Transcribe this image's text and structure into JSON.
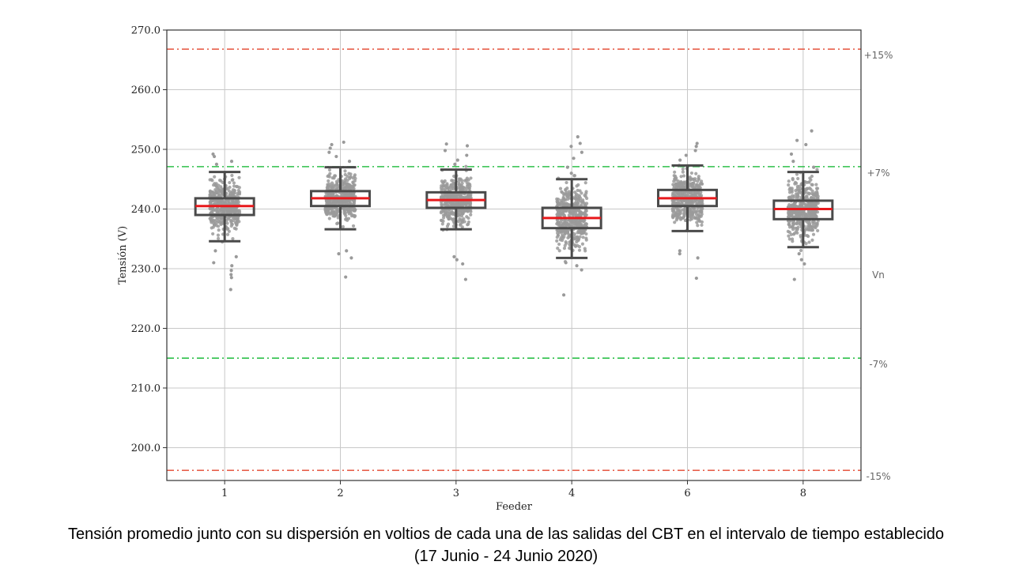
{
  "chart_data": {
    "type": "boxplot",
    "xlabel": "Feeder",
    "ylabel": "Tensión (V)",
    "ylim": [
      194.5,
      270.0
    ],
    "yticks": [
      200.0,
      210.0,
      220.0,
      230.0,
      240.0,
      250.0,
      260.0,
      270.0
    ],
    "grid": true,
    "categories": [
      "1",
      "2",
      "3",
      "4",
      "6",
      "8"
    ],
    "boxes": [
      {
        "name": "1",
        "whisker_low": 234.6,
        "q1": 239.0,
        "median": 240.5,
        "q3": 241.8,
        "whisker_high": 246.2,
        "outliers": [
          229.7,
          229.0,
          228.5,
          226.5,
          230.5,
          231.0,
          232.0,
          233.0,
          247.5,
          248.0,
          248.8,
          249.2
        ]
      },
      {
        "name": "2",
        "whisker_low": 236.6,
        "q1": 240.5,
        "median": 241.8,
        "q3": 243.0,
        "whisker_high": 247.0,
        "outliers": [
          232.5,
          233.0,
          231.8,
          228.6,
          248.0,
          248.8,
          249.5,
          250.2,
          250.8,
          251.2
        ]
      },
      {
        "name": "3",
        "whisker_low": 236.6,
        "q1": 240.2,
        "median": 241.5,
        "q3": 242.8,
        "whisker_high": 246.6,
        "outliers": [
          232.0,
          231.5,
          230.8,
          228.2,
          247.5,
          248.2,
          249.0,
          249.8,
          250.6,
          250.9
        ]
      },
      {
        "name": "4",
        "whisker_low": 231.8,
        "q1": 236.8,
        "median": 238.5,
        "q3": 240.2,
        "whisker_high": 245.0,
        "outliers": [
          229.8,
          230.5,
          231.0,
          225.6,
          246.0,
          247.0,
          248.5,
          249.5,
          250.5,
          251.0,
          252.1
        ]
      },
      {
        "name": "6",
        "whisker_low": 236.3,
        "q1": 240.5,
        "median": 241.8,
        "q3": 243.2,
        "whisker_high": 247.3,
        "outliers": [
          233.0,
          232.5,
          231.8,
          228.4,
          248.2,
          249.0,
          249.8,
          250.5,
          251.0
        ]
      },
      {
        "name": "8",
        "whisker_low": 233.6,
        "q1": 238.3,
        "median": 240.0,
        "q3": 241.4,
        "whisker_high": 246.2,
        "outliers": [
          232.5,
          231.5,
          230.8,
          228.2,
          247.0,
          248.0,
          249.2,
          250.8,
          251.5,
          253.1
        ]
      }
    ],
    "reference_lines": [
      {
        "label": "+15%",
        "value": 266.8,
        "color": "#e8604c"
      },
      {
        "label": "+7%",
        "value": 247.1,
        "color": "#2ec04a"
      },
      {
        "label": "Vn",
        "value": 230.0,
        "color": "none"
      },
      {
        "label": "-7%",
        "value": 215.0,
        "color": "#2ec04a"
      },
      {
        "label": "-15%",
        "value": 196.2,
        "color": "#e8604c"
      }
    ],
    "colors": {
      "box": "#4a4a4a",
      "median": "#e8191c",
      "points": "#9a9a9a",
      "grid": "#c8c8c8"
    }
  },
  "caption": {
    "line1": "Tensión promedio junto con su dispersión en voltios de cada una de las salidas del CBT en el intervalo de tiempo establecido",
    "line2": "(17 Junio - 24 Junio 2020)"
  }
}
